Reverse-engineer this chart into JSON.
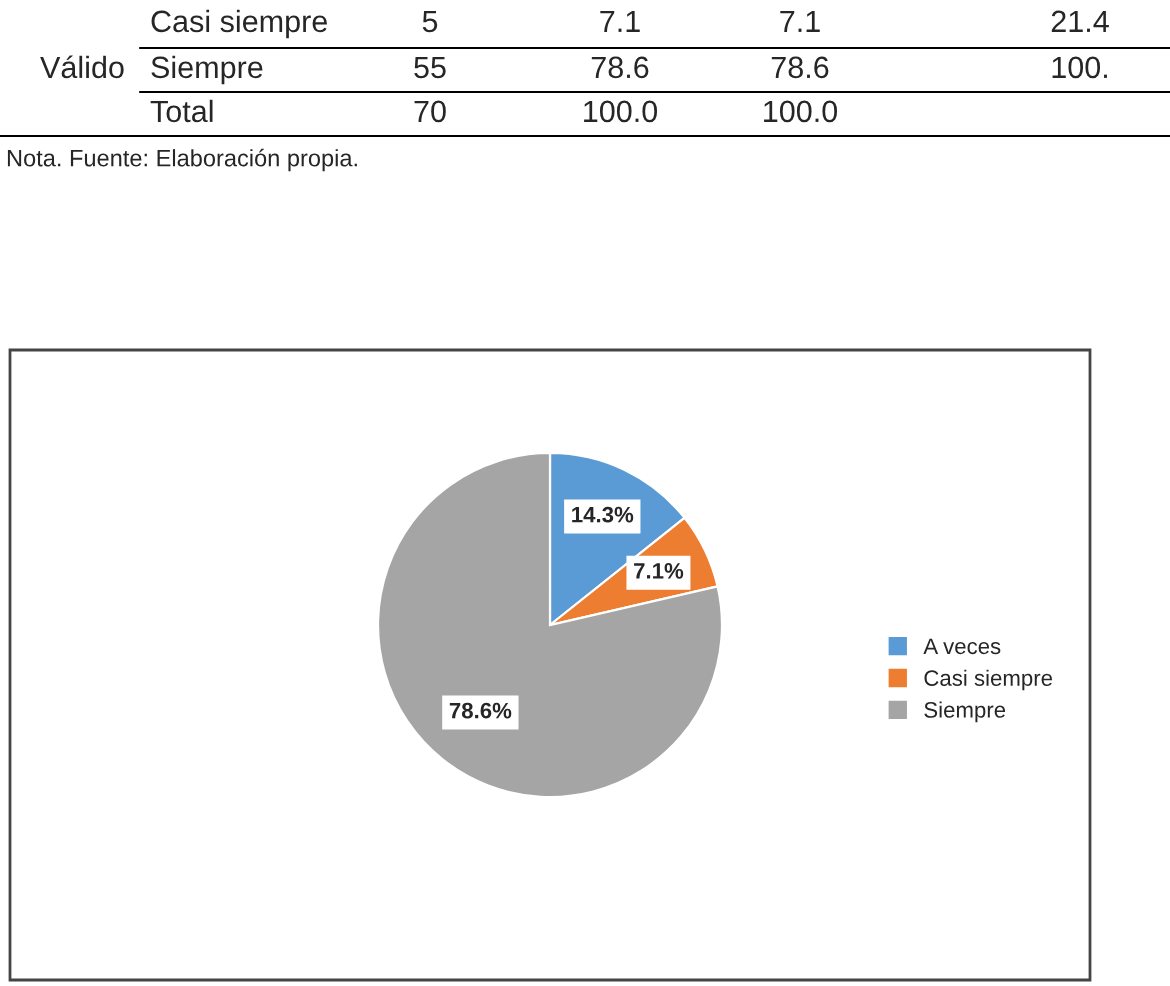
{
  "chart_data": {
    "type": "pie",
    "categories": [
      "A veces",
      "Casi siempre",
      "Siempre"
    ],
    "values": [
      14.3,
      7.1,
      78.6
    ],
    "colors": [
      "#5b9bd5",
      "#ed7d31",
      "#a5a5a5"
    ],
    "value_labels": [
      "14.3%",
      "7.1%",
      "78.6%"
    ],
    "legend": "right",
    "annotations": [
      "Válido",
      "Casi siempre",
      "5",
      "7.1",
      "7.1",
      "21.4",
      "Siempre",
      "55",
      "78.6",
      "78.6",
      "100.",
      "Total",
      "70",
      "100.0",
      "100.0",
      "Nota. Fuente: Elaboración propia."
    ]
  }
}
